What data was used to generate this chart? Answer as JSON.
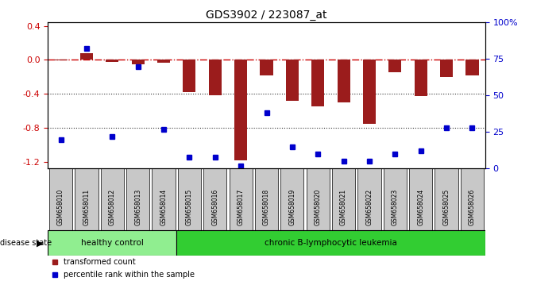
{
  "title": "GDS3902 / 223087_at",
  "samples": [
    "GSM658010",
    "GSM658011",
    "GSM658012",
    "GSM658013",
    "GSM658014",
    "GSM658015",
    "GSM658016",
    "GSM658017",
    "GSM658018",
    "GSM658019",
    "GSM658020",
    "GSM658021",
    "GSM658022",
    "GSM658023",
    "GSM658024",
    "GSM658025",
    "GSM658026"
  ],
  "bar_values": [
    -0.01,
    0.08,
    -0.02,
    -0.05,
    -0.03,
    -0.38,
    -0.42,
    -1.18,
    -0.18,
    -0.48,
    -0.55,
    -0.5,
    -0.75,
    -0.15,
    -0.43,
    -0.2,
    -0.18
  ],
  "percentile_values": [
    20,
    82,
    22,
    70,
    27,
    8,
    8,
    2,
    38,
    15,
    10,
    5,
    5,
    10,
    12,
    28,
    28
  ],
  "bar_color": "#9B1C1C",
  "dot_color": "#0000CC",
  "ylim_left": [
    -1.28,
    0.44
  ],
  "yticks_left": [
    0.4,
    0.0,
    -0.4,
    -0.8,
    -1.2
  ],
  "yticks_right": [
    100,
    75,
    50,
    25,
    0
  ],
  "ylim_right": [
    0,
    100
  ],
  "healthy_count": 5,
  "healthy_label": "healthy control",
  "disease_label": "chronic B-lymphocytic leukemia",
  "healthy_color": "#90EE90",
  "disease_color": "#32CD32",
  "group_bg_color": "#C8C8C8",
  "legend_bar_label": "transformed count",
  "legend_dot_label": "percentile rank within the sample",
  "disease_state_label": "disease state",
  "zero_line_color": "#CC0000",
  "dotted_line_color": "#333333",
  "spine_color": "#000000"
}
